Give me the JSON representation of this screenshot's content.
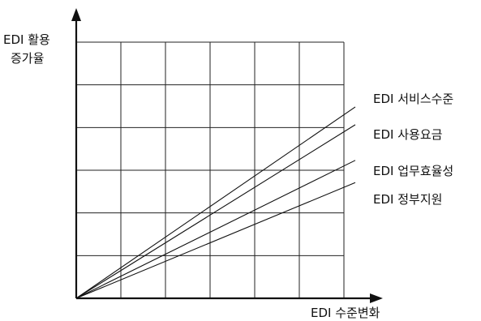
{
  "chart_data": {
    "type": "line",
    "xlabel": "EDI 수준변화",
    "ylabel_lines": [
      "EDI 활용",
      "증가율"
    ],
    "grid": true,
    "legend": "inline-right",
    "axis_color": "#111111",
    "line_color": "#111111",
    "x": [
      0,
      6
    ],
    "ylim": [
      0,
      6
    ],
    "xlim": [
      0,
      6
    ],
    "series": [
      {
        "name": "EDI 서비스수준",
        "values": [
          0,
          4.3
        ]
      },
      {
        "name": "EDI 사용요금",
        "values": [
          0,
          3.9
        ]
      },
      {
        "name": "EDI 업무효율성",
        "values": [
          0,
          3.1
        ]
      },
      {
        "name": "EDI 정부지원",
        "values": [
          0,
          2.6
        ]
      }
    ]
  }
}
